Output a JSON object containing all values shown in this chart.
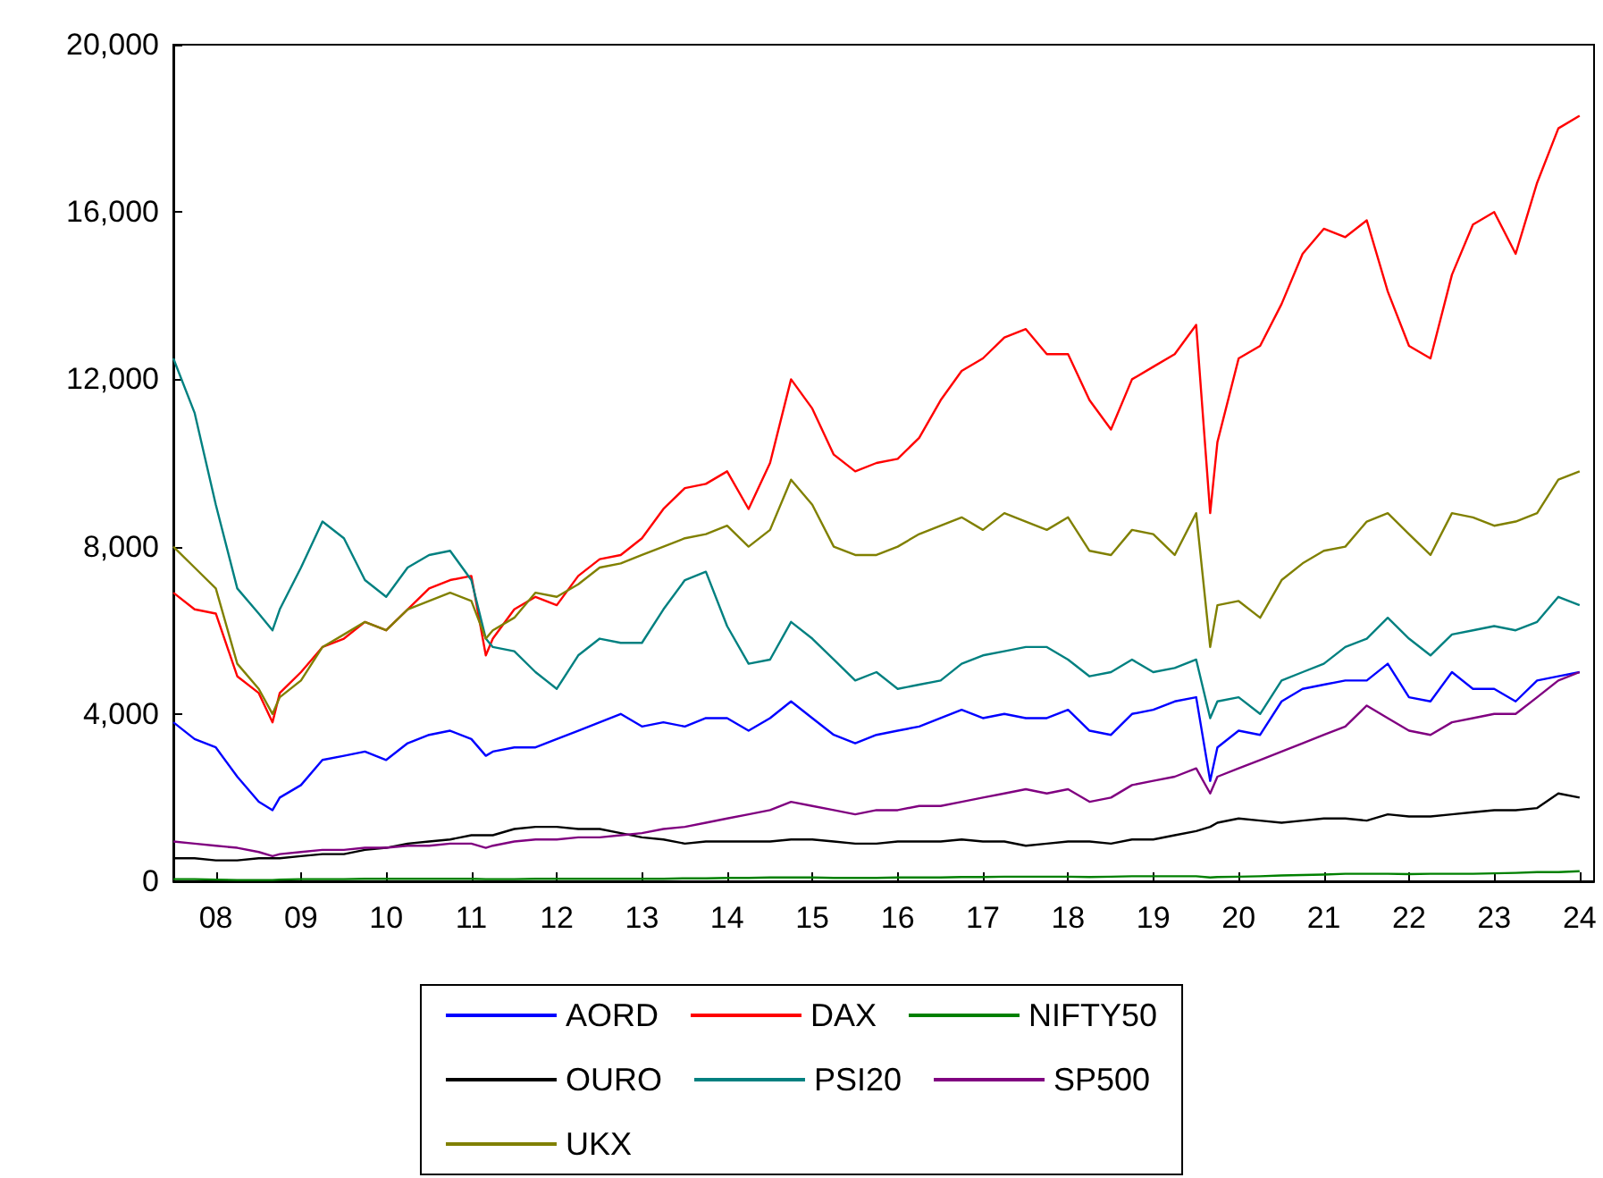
{
  "chart_data": {
    "type": "line",
    "x": [
      "2008-01",
      "2008-04",
      "2008-07",
      "2008-10",
      "2009-01",
      "2009-03",
      "2009-04",
      "2009-07",
      "2009-10",
      "2010-01",
      "2010-04",
      "2010-07",
      "2010-10",
      "2011-01",
      "2011-04",
      "2011-07",
      "2011-09",
      "2011-10",
      "2012-01",
      "2012-04",
      "2012-07",
      "2012-10",
      "2013-01",
      "2013-04",
      "2013-07",
      "2013-10",
      "2014-01",
      "2014-04",
      "2014-07",
      "2014-10",
      "2015-01",
      "2015-04",
      "2015-07",
      "2015-10",
      "2016-01",
      "2016-04",
      "2016-07",
      "2016-10",
      "2017-01",
      "2017-04",
      "2017-07",
      "2017-10",
      "2018-01",
      "2018-04",
      "2018-07",
      "2018-10",
      "2019-01",
      "2019-04",
      "2019-07",
      "2019-10",
      "2020-01",
      "2020-03",
      "2020-04",
      "2020-07",
      "2020-10",
      "2021-01",
      "2021-04",
      "2021-07",
      "2021-10",
      "2022-01",
      "2022-04",
      "2022-07",
      "2022-10",
      "2023-01",
      "2023-04",
      "2023-07",
      "2023-10",
      "2024-01",
      "2024-04",
      "2024-07"
    ],
    "series": [
      {
        "name": "AORD",
        "color": "#0000ff",
        "values": [
          3800,
          3400,
          3200,
          2500,
          1900,
          1700,
          2000,
          2300,
          2900,
          3000,
          3100,
          2900,
          3300,
          3500,
          3600,
          3400,
          3000,
          3100,
          3200,
          3200,
          3400,
          3600,
          3800,
          4000,
          3700,
          3800,
          3700,
          3900,
          3900,
          3600,
          3900,
          4300,
          3900,
          3500,
          3300,
          3500,
          3600,
          3700,
          3900,
          4100,
          3900,
          4000,
          3900,
          3900,
          4100,
          3600,
          3500,
          4000,
          4100,
          4300,
          4400,
          2400,
          3200,
          3600,
          3500,
          4300,
          4600,
          4700,
          4800,
          4800,
          5200,
          4400,
          4300,
          5000,
          4600,
          4600,
          4300,
          4800,
          4900,
          5000
        ]
      },
      {
        "name": "DAX",
        "color": "#ff0000",
        "values": [
          6900,
          6500,
          6400,
          4900,
          4500,
          3800,
          4500,
          5000,
          5600,
          5800,
          6200,
          6000,
          6500,
          7000,
          7200,
          7300,
          5400,
          5800,
          6500,
          6800,
          6600,
          7300,
          7700,
          7800,
          8200,
          8900,
          9400,
          9500,
          9800,
          8900,
          10000,
          12000,
          11300,
          10200,
          9800,
          10000,
          10100,
          10600,
          11500,
          12200,
          12500,
          13000,
          13200,
          12600,
          12600,
          11500,
          10800,
          12000,
          12300,
          12600,
          13300,
          8800,
          10500,
          12500,
          12800,
          13800,
          15000,
          15600,
          15400,
          15800,
          14100,
          12800,
          12500,
          14500,
          15700,
          16000,
          15000,
          16700,
          18000,
          18300
        ]
      },
      {
        "name": "NIFTY50",
        "color": "#008000",
        "values": [
          50,
          50,
          40,
          30,
          30,
          30,
          40,
          50,
          50,
          50,
          60,
          60,
          60,
          60,
          60,
          60,
          50,
          50,
          50,
          60,
          60,
          60,
          60,
          60,
          60,
          60,
          70,
          70,
          80,
          80,
          90,
          90,
          90,
          80,
          80,
          80,
          90,
          90,
          90,
          100,
          100,
          110,
          110,
          110,
          110,
          100,
          110,
          120,
          120,
          120,
          120,
          90,
          100,
          110,
          120,
          140,
          150,
          160,
          180,
          180,
          180,
          170,
          180,
          180,
          180,
          190,
          200,
          220,
          220,
          240
        ]
      },
      {
        "name": "OURO",
        "color": "#000000",
        "values": [
          550,
          550,
          500,
          500,
          550,
          550,
          550,
          600,
          650,
          650,
          750,
          800,
          900,
          950,
          1000,
          1100,
          1100,
          1100,
          1250,
          1300,
          1300,
          1250,
          1250,
          1150,
          1050,
          1000,
          900,
          950,
          950,
          950,
          950,
          1000,
          1000,
          950,
          900,
          900,
          950,
          950,
          950,
          1000,
          950,
          950,
          850,
          900,
          950,
          950,
          900,
          1000,
          1000,
          1100,
          1200,
          1300,
          1400,
          1500,
          1450,
          1400,
          1450,
          1500,
          1500,
          1450,
          1600,
          1550,
          1550,
          1600,
          1650,
          1700,
          1700,
          1750,
          2100,
          2000
        ]
      },
      {
        "name": "PSI20",
        "color": "#008080",
        "values": [
          12500,
          11200,
          9000,
          7000,
          6400,
          6000,
          6500,
          7500,
          8600,
          8200,
          7200,
          6800,
          7500,
          7800,
          7900,
          7200,
          5800,
          5600,
          5500,
          5000,
          4600,
          5400,
          5800,
          5700,
          5700,
          6500,
          7200,
          7400,
          6100,
          5200,
          5300,
          6200,
          5800,
          5300,
          4800,
          5000,
          4600,
          4700,
          4800,
          5200,
          5400,
          5500,
          5600,
          5600,
          5300,
          4900,
          5000,
          5300,
          5000,
          5100,
          5300,
          3900,
          4300,
          4400,
          4000,
          4800,
          5000,
          5200,
          5600,
          5800,
          6300,
          5800,
          5400,
          5900,
          6000,
          6100,
          6000,
          6200,
          6800,
          6600
        ]
      },
      {
        "name": "SP500",
        "color": "#800080",
        "values": [
          950,
          900,
          850,
          800,
          700,
          600,
          650,
          700,
          750,
          750,
          800,
          800,
          850,
          850,
          900,
          900,
          800,
          850,
          950,
          1000,
          1000,
          1050,
          1050,
          1100,
          1150,
          1250,
          1300,
          1400,
          1500,
          1600,
          1700,
          1900,
          1800,
          1700,
          1600,
          1700,
          1700,
          1800,
          1800,
          1900,
          2000,
          2100,
          2200,
          2100,
          2200,
          1900,
          2000,
          2300,
          2400,
          2500,
          2700,
          2100,
          2500,
          2700,
          2900,
          3100,
          3300,
          3500,
          3700,
          4200,
          3900,
          3600,
          3500,
          3800,
          3900,
          4000,
          4000,
          4400,
          4800,
          5000
        ]
      },
      {
        "name": "UKX",
        "color": "#808000",
        "values": [
          8000,
          7500,
          7000,
          5200,
          4600,
          4000,
          4400,
          4800,
          5600,
          5900,
          6200,
          6000,
          6500,
          6700,
          6900,
          6700,
          5800,
          6000,
          6300,
          6900,
          6800,
          7100,
          7500,
          7600,
          7800,
          8000,
          8200,
          8300,
          8500,
          8000,
          8400,
          9600,
          9000,
          8000,
          7800,
          7800,
          8000,
          8300,
          8500,
          8700,
          8400,
          8800,
          8600,
          8400,
          8700,
          7900,
          7800,
          8400,
          8300,
          7800,
          8800,
          5600,
          6600,
          6700,
          6300,
          7200,
          7600,
          7900,
          8000,
          8600,
          8800,
          8300,
          7800,
          8800,
          8700,
          8500,
          8600,
          8800,
          9600,
          9800
        ]
      }
    ],
    "xlim": [
      "2008-01",
      "2024-09"
    ],
    "xticks": [
      {
        "value": "2008-07",
        "label": "08"
      },
      {
        "value": "2009-07",
        "label": "09"
      },
      {
        "value": "2010-07",
        "label": "10"
      },
      {
        "value": "2011-07",
        "label": "11"
      },
      {
        "value": "2012-07",
        "label": "12"
      },
      {
        "value": "2013-07",
        "label": "13"
      },
      {
        "value": "2014-07",
        "label": "14"
      },
      {
        "value": "2015-07",
        "label": "15"
      },
      {
        "value": "2016-07",
        "label": "16"
      },
      {
        "value": "2017-07",
        "label": "17"
      },
      {
        "value": "2018-07",
        "label": "18"
      },
      {
        "value": "2019-07",
        "label": "19"
      },
      {
        "value": "2020-07",
        "label": "20"
      },
      {
        "value": "2021-07",
        "label": "21"
      },
      {
        "value": "2022-07",
        "label": "22"
      },
      {
        "value": "2023-07",
        "label": "23"
      },
      {
        "value": "2024-07",
        "label": "24"
      }
    ],
    "ylim": [
      0,
      20000
    ],
    "yticks": [
      0,
      {
        "value": 4000,
        "label": "4,000"
      },
      {
        "value": 8000,
        "label": "8,000"
      },
      {
        "value": 12000,
        "label": "12,000"
      },
      {
        "value": 16000,
        "label": "16,000"
      },
      {
        "value": 20000,
        "label": "20,000"
      }
    ],
    "legend": "bottom"
  }
}
